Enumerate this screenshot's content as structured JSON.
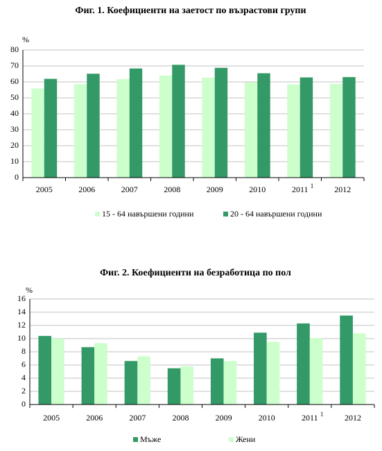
{
  "chart_data": [
    {
      "type": "bar",
      "title": "Фиг. 1. Коефициенти на заетост по възрастови групи",
      "y_label": "%",
      "categories": [
        "2005",
        "2006",
        "2007",
        "2008",
        "2009",
        "2010",
        "2011",
        "2012"
      ],
      "category_superscripts": [
        null,
        null,
        null,
        null,
        null,
        null,
        "1",
        null
      ],
      "series": [
        {
          "name": "15 - 64 навършени години",
          "color": "#ccffcc",
          "values": [
            55.8,
            58.6,
            61.7,
            64.0,
            62.6,
            59.7,
            58.4,
            58.8
          ]
        },
        {
          "name": "20 - 64 навършени години",
          "color": "#339966",
          "values": [
            61.9,
            65.1,
            68.4,
            70.7,
            68.8,
            65.4,
            62.8,
            63.0
          ]
        }
      ],
      "ylim": [
        0,
        80
      ],
      "yticks": [
        0,
        10,
        20,
        30,
        40,
        50,
        60,
        70,
        80
      ],
      "grid": true,
      "legend": "bottom"
    },
    {
      "type": "bar",
      "title": "Фиг. 2.  Коефициенти на безработица по пол",
      "y_label": "%",
      "categories": [
        "2005",
        "2006",
        "2007",
        "2008",
        "2009",
        "2010",
        "2011",
        "2012"
      ],
      "category_superscripts": [
        null,
        null,
        null,
        null,
        null,
        null,
        "1",
        null
      ],
      "series": [
        {
          "name": "Мъже",
          "color": "#339966",
          "values": [
            10.4,
            8.7,
            6.6,
            5.5,
            7.0,
            10.9,
            12.3,
            13.5
          ]
        },
        {
          "name": "Жени",
          "color": "#ccffcc",
          "values": [
            10.0,
            9.3,
            7.3,
            5.8,
            6.6,
            9.5,
            10.1,
            10.8
          ]
        }
      ],
      "ylim": [
        0,
        16
      ],
      "yticks": [
        0,
        2,
        4,
        6,
        8,
        10,
        12,
        14,
        16
      ],
      "grid": true,
      "legend": "bottom"
    }
  ]
}
